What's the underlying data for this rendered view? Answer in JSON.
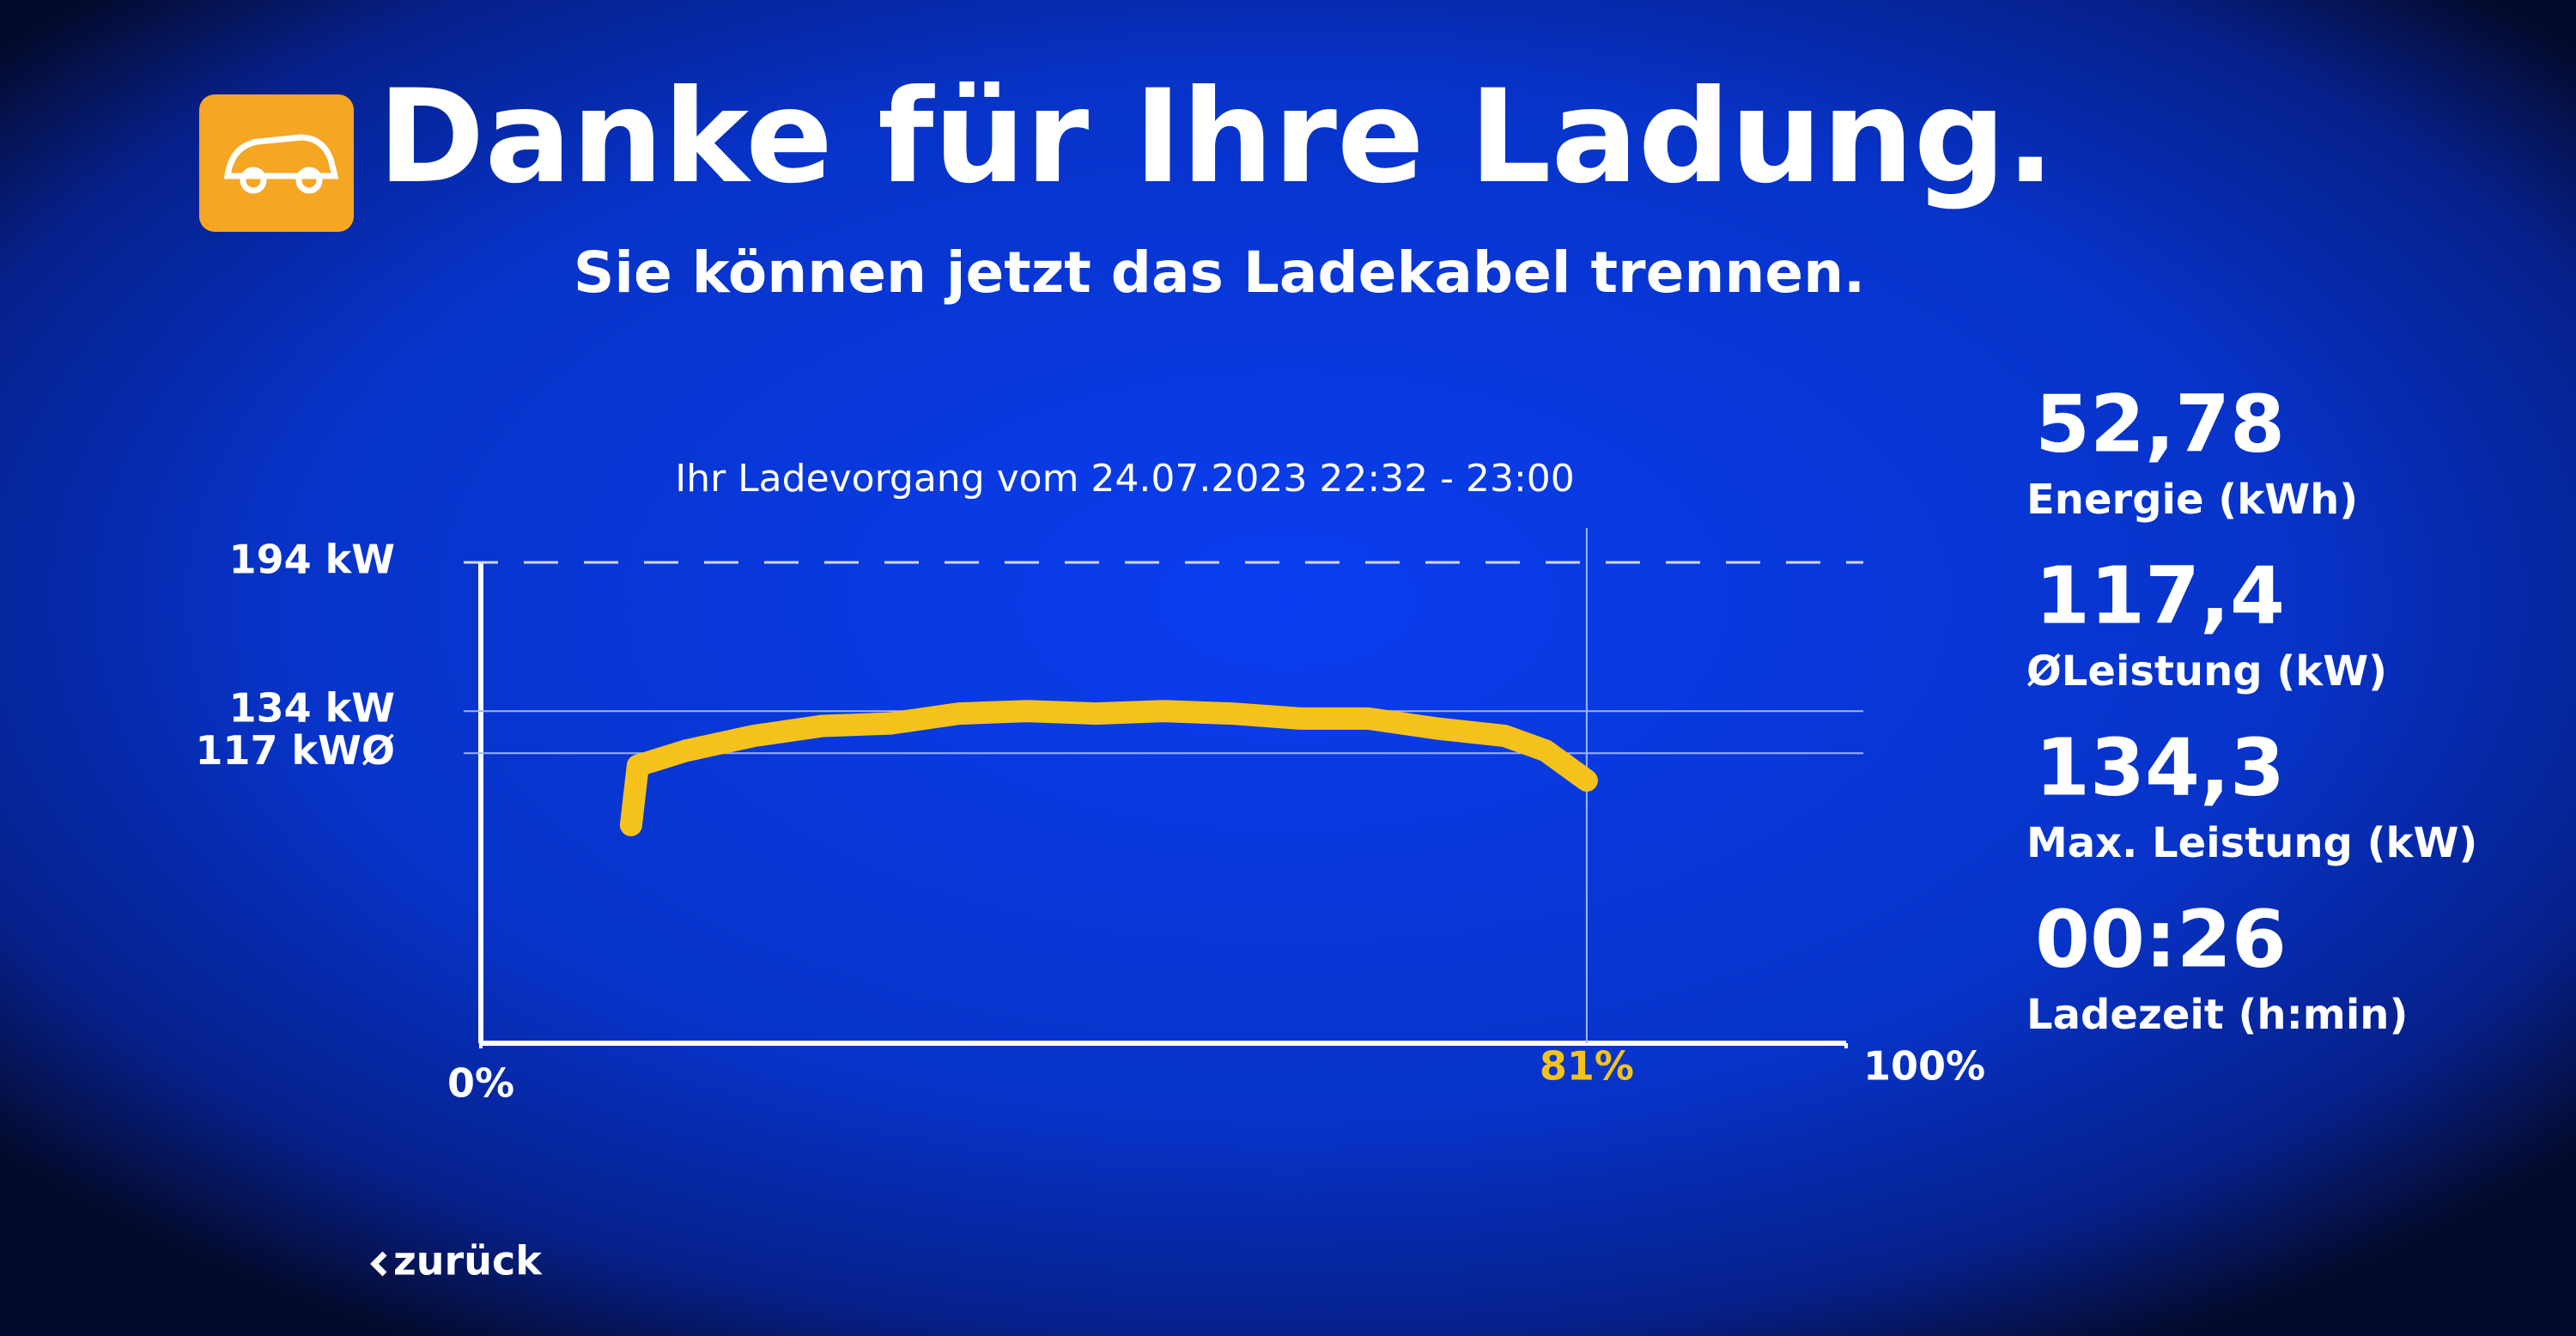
{
  "header": {
    "title": "Danke für Ihre Ladung.",
    "subtitle": "Sie können jetzt das Ladekabel trennen."
  },
  "chart_data": {
    "type": "line",
    "title": "Ihr Ladevorgang vom 24.07.2023 22:32 - 23:00",
    "x": [
      11,
      11.5,
      15,
      20,
      25,
      30,
      35,
      40,
      45,
      50,
      55,
      60,
      65,
      70,
      75,
      78,
      81
    ],
    "values": [
      88,
      112,
      118,
      124,
      128,
      129,
      133,
      134,
      133,
      134,
      133,
      131,
      131,
      127,
      124,
      118,
      106
    ],
    "color": "#f5c21b",
    "xlim": [
      0,
      100
    ],
    "ylim": [
      0,
      194
    ],
    "xticks": [
      {
        "value": 0,
        "label": "0%"
      },
      {
        "value": 81,
        "label": "81%"
      },
      {
        "value": 100,
        "label": "100%"
      }
    ],
    "yticks": [
      {
        "value": 194,
        "label": "194 kW"
      },
      {
        "value": 134,
        "label": "134 kW"
      },
      {
        "value": 117,
        "label": "117 kWØ"
      }
    ],
    "grid": true
  },
  "stats": [
    {
      "value": "52,78",
      "label": "Energie (kWh)"
    },
    {
      "value": "117,4",
      "label": "ØLeistung (kW)"
    },
    {
      "value": "134,3",
      "label": "Max. Leistung (kW)"
    },
    {
      "value": "00:26",
      "label": "Ladezeit (h:min)"
    }
  ],
  "back_button": "zurück"
}
